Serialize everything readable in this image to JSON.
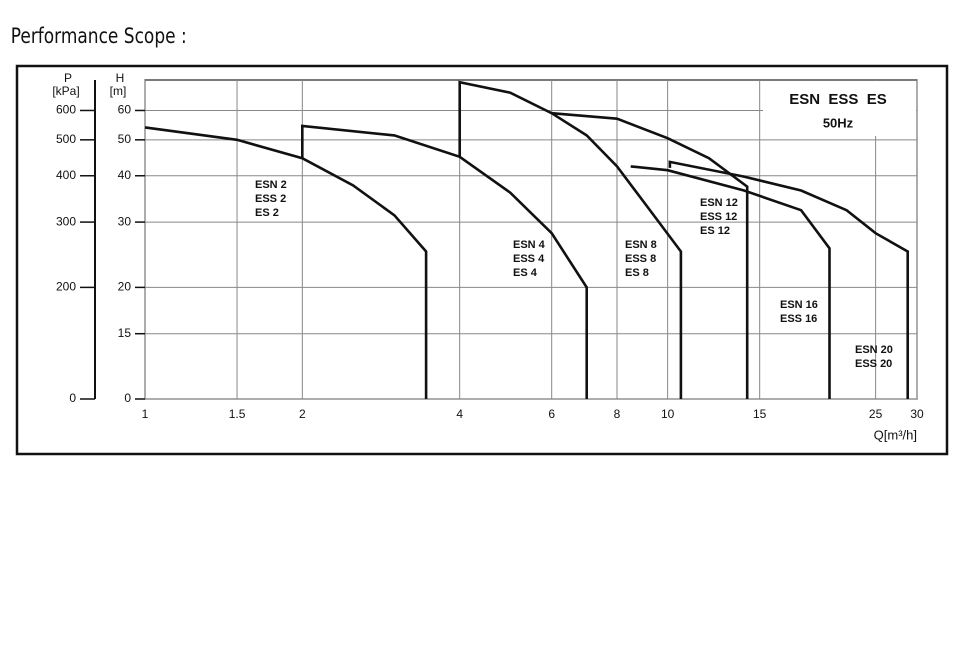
{
  "chart_data": {
    "type": "line",
    "title": "Performance Scope :",
    "box_title": "ESN  ESS  ES",
    "box_subtitle": "50Hz",
    "x_label": "Q[m³/h]",
    "y_label": "H",
    "y_unit": "[m]",
    "y2_label": "P",
    "y2_unit": "[kPa]",
    "x_log": true,
    "y_log": true,
    "grid": true,
    "color": "#111111",
    "xlim": [
      1,
      30
    ],
    "xticks": [
      1,
      1.5,
      2,
      4,
      6,
      8,
      10,
      15,
      25,
      30
    ],
    "ylim": [
      10,
      72.5
    ],
    "yticks": [
      {
        "value": 10,
        "label": "0"
      },
      15,
      20,
      30,
      40,
      50,
      60
    ],
    "y2lim": [
      100,
      725
    ],
    "y2ticks": [
      {
        "value": 100,
        "label": "0"
      },
      200,
      300,
      400,
      500,
      600
    ],
    "series": [
      {
        "labels": [
          "ESN 2",
          "ESS 2",
          "ES 2"
        ],
        "x": [
          1,
          1.5,
          2,
          2.5,
          3,
          3.45,
          3.45
        ],
        "values": [
          54,
          50,
          44.6,
          37.7,
          31.3,
          25,
          10
        ]
      },
      {
        "labels": [
          "ESN 4",
          "ESS 4",
          "ES 4"
        ],
        "x": [
          2,
          2,
          3,
          4,
          5,
          6,
          7,
          7
        ],
        "values": [
          44.6,
          54.5,
          51.4,
          45,
          36,
          28,
          20,
          10
        ]
      },
      {
        "labels": [
          "ESN 8",
          "ESS 8",
          "ES 8"
        ],
        "x": [
          4,
          4,
          5,
          6,
          7,
          8,
          9,
          10.6,
          10.6
        ],
        "values": [
          45,
          71.5,
          67,
          59,
          51.4,
          42.4,
          34,
          25,
          10
        ]
      },
      {
        "labels": [
          "ESN 12",
          "ESS 12",
          "ES 12"
        ],
        "x": [
          6,
          8,
          10,
          12,
          14.2,
          14.2
        ],
        "values": [
          59,
          57,
          50.5,
          44.6,
          37.4,
          10
        ]
      },
      {
        "labels": [
          "ESN 16",
          "ESS 16"
        ],
        "x": [
          8.5,
          10,
          14,
          18,
          20.4,
          20.4
        ],
        "values": [
          42.4,
          41.4,
          36.5,
          32.3,
          25.5,
          10
        ]
      },
      {
        "labels": [
          "ESN 20",
          "ESS 20"
        ],
        "x": [
          10.1,
          10.1,
          14,
          18,
          22,
          25,
          28.8,
          28.8
        ],
        "values": [
          42,
          43.6,
          39.8,
          36.5,
          32.3,
          28,
          25,
          10
        ]
      }
    ]
  }
}
